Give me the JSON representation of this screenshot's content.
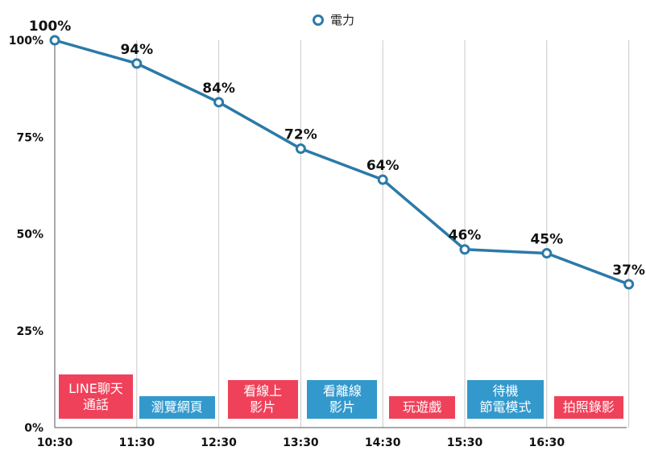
{
  "chart_data": {
    "type": "line",
    "categories": [
      "10:30",
      "11:30",
      "12:30",
      "13:30",
      "14:30",
      "15:30",
      "16:30",
      ""
    ],
    "series": [
      {
        "name": "電力",
        "color": "#2b7aa8",
        "values": [
          100,
          94,
          84,
          72,
          64,
          46,
          45,
          37
        ],
        "labels": [
          "100%",
          "94%",
          "84%",
          "72%",
          "64%",
          "46%",
          "45%",
          "37%"
        ]
      }
    ],
    "y_ticks": [
      "0%",
      "25%",
      "50%",
      "75%",
      "100%"
    ],
    "ylim": [
      0,
      100
    ],
    "grid": true,
    "legend": "top-center",
    "activities": [
      {
        "text": "LINE聊天\n通話",
        "color": "#f0415a"
      },
      {
        "text": "瀏覽網頁",
        "color": "#3399cc"
      },
      {
        "text": "看線上\n影片",
        "color": "#f0415a"
      },
      {
        "text": "看離線\n影片",
        "color": "#3399cc"
      },
      {
        "text": "玩遊戲",
        "color": "#f0415a"
      },
      {
        "text": "待機\n節電模式",
        "color": "#3399cc"
      },
      {
        "text": "拍照錄影",
        "color": "#f0415a"
      }
    ]
  }
}
